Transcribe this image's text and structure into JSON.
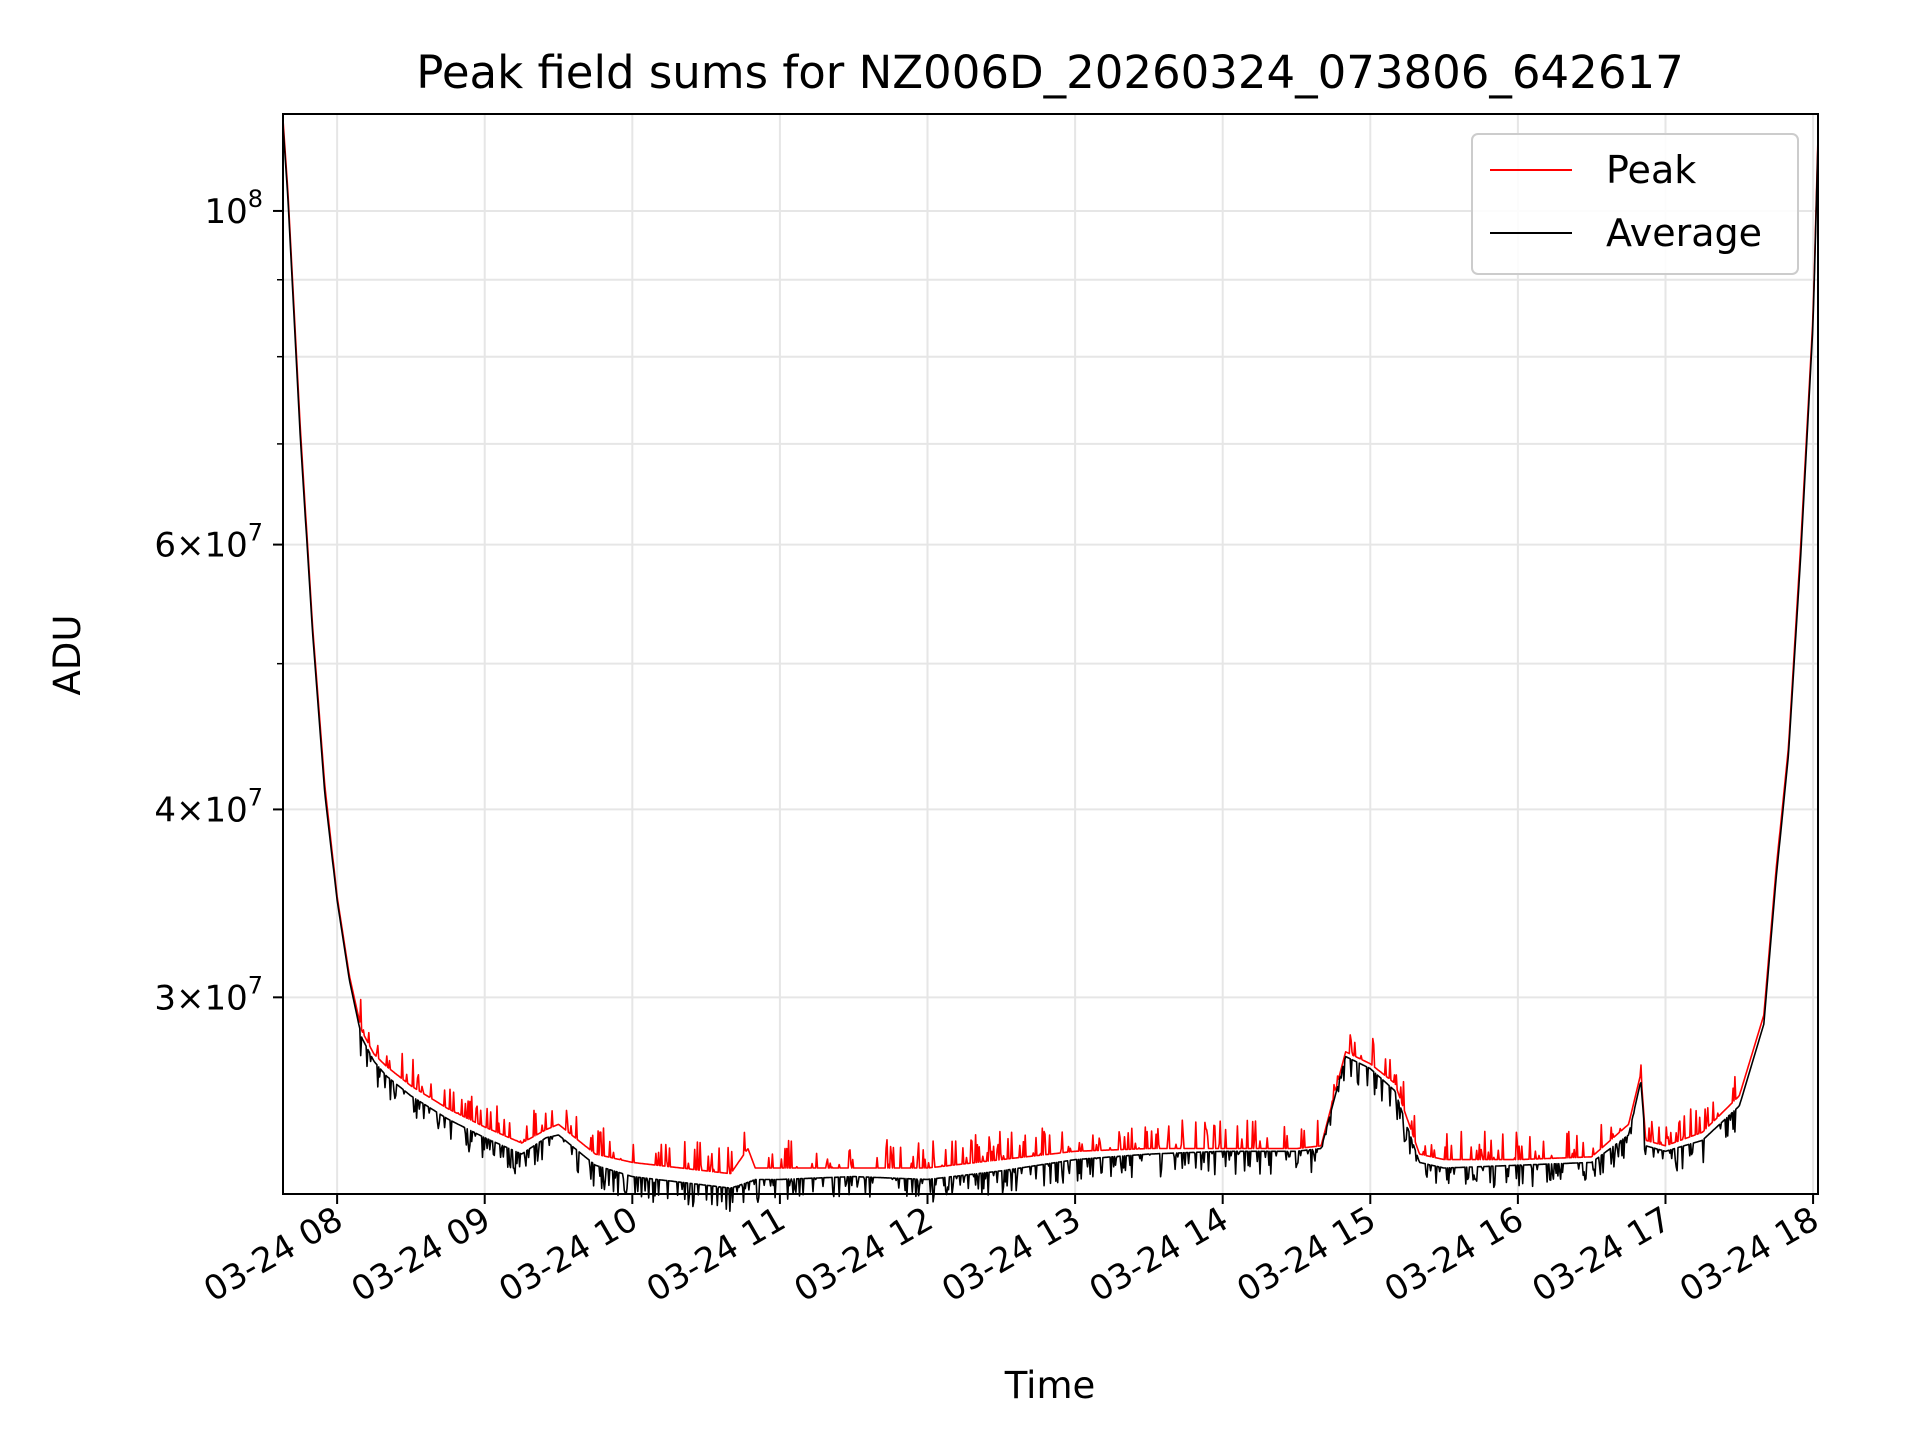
{
  "chart_data": {
    "type": "line",
    "title": "Peak field sums for NZ006D_20260324_073806_642617",
    "xlabel": "Time",
    "ylabel": "ADU",
    "x_axis": {
      "type": "time",
      "range": [
        "2026-03-24T07:38:00",
        "2026-03-24T18:02:00"
      ],
      "ticks": [
        "2026-03-24T08:00",
        "2026-03-24T09:00",
        "2026-03-24T10:00",
        "2026-03-24T11:00",
        "2026-03-24T12:00",
        "2026-03-24T13:00",
        "2026-03-24T14:00",
        "2026-03-24T15:00",
        "2026-03-24T16:00",
        "2026-03-24T17:00",
        "2026-03-24T18:00"
      ],
      "tick_labels": [
        "03-24 08",
        "03-24 09",
        "03-24 10",
        "03-24 11",
        "03-24 12",
        "03-24 13",
        "03-24 14",
        "03-24 15",
        "03-24 16",
        "03-24 17",
        "03-24 18"
      ]
    },
    "y_axis": {
      "scale": "log",
      "range": [
        22200000,
        116000000
      ],
      "ticks": [
        {
          "value": 100000000,
          "mantissa": "",
          "exponent": "8"
        },
        {
          "value": 60000000,
          "mantissa": "6",
          "exponent": "7"
        },
        {
          "value": 40000000,
          "mantissa": "4",
          "exponent": "7"
        },
        {
          "value": 30000000,
          "mantissa": "3",
          "exponent": "7"
        }
      ],
      "minor_ticks": [
        20000000,
        50000000,
        70000000,
        80000000,
        90000000
      ]
    },
    "grid": true,
    "legend": {
      "placement": "top-right"
    },
    "series": [
      {
        "name": "Peak",
        "color": "#ff0000",
        "x": [
          "2026-03-24T07:38",
          "2026-03-24T07:40",
          "2026-03-24T07:45",
          "2026-03-24T07:50",
          "2026-03-24T07:55",
          "2026-03-24T08:00",
          "2026-03-24T08:05",
          "2026-03-24T08:10",
          "2026-03-24T08:15",
          "2026-03-24T08:20",
          "2026-03-24T08:30",
          "2026-03-24T08:45",
          "2026-03-24T09:00",
          "2026-03-24T09:15",
          "2026-03-24T09:25",
          "2026-03-24T09:30",
          "2026-03-24T09:45",
          "2026-03-24T10:00",
          "2026-03-24T10:20",
          "2026-03-24T10:40",
          "2026-03-24T10:47",
          "2026-03-24T10:50",
          "2026-03-24T11:00",
          "2026-03-24T11:30",
          "2026-03-24T12:00",
          "2026-03-24T12:30",
          "2026-03-24T13:00",
          "2026-03-24T13:30",
          "2026-03-24T14:00",
          "2026-03-24T14:30",
          "2026-03-24T14:40",
          "2026-03-24T14:50",
          "2026-03-24T15:00",
          "2026-03-24T15:10",
          "2026-03-24T15:20",
          "2026-03-24T15:30",
          "2026-03-24T16:00",
          "2026-03-24T16:30",
          "2026-03-24T16:45",
          "2026-03-24T16:50",
          "2026-03-24T16:52",
          "2026-03-24T17:00",
          "2026-03-24T17:15",
          "2026-03-24T17:30",
          "2026-03-24T17:40",
          "2026-03-24T17:45",
          "2026-03-24T17:50",
          "2026-03-24T17:55",
          "2026-03-24T18:00",
          "2026-03-24T18:02"
        ],
        "values": [
          115000000,
          103000000,
          72000000,
          53000000,
          41500000,
          35000000,
          31000000,
          28500000,
          27500000,
          27000000,
          26200000,
          25300000,
          24600000,
          24000000,
          24500000,
          24700000,
          23600000,
          23300000,
          23100000,
          22900000,
          23800000,
          23100000,
          23100000,
          23100000,
          23100000,
          23400000,
          23700000,
          23800000,
          23800000,
          23800000,
          23900000,
          27600000,
          27100000,
          26300000,
          23600000,
          23400000,
          23400000,
          23500000,
          24700000,
          26700000,
          24100000,
          23900000,
          24400000,
          25800000,
          29200000,
          36500000,
          44000000,
          60000000,
          85000000,
          112000000
        ]
      },
      {
        "name": "Average",
        "color": "#000000",
        "x": [
          "2026-03-24T07:38",
          "2026-03-24T07:40",
          "2026-03-24T07:45",
          "2026-03-24T07:50",
          "2026-03-24T07:55",
          "2026-03-24T08:00",
          "2026-03-24T08:05",
          "2026-03-24T08:10",
          "2026-03-24T08:15",
          "2026-03-24T08:20",
          "2026-03-24T08:30",
          "2026-03-24T08:45",
          "2026-03-24T09:00",
          "2026-03-24T09:15",
          "2026-03-24T09:25",
          "2026-03-24T09:30",
          "2026-03-24T09:45",
          "2026-03-24T10:00",
          "2026-03-24T10:20",
          "2026-03-24T10:40",
          "2026-03-24T10:47",
          "2026-03-24T10:50",
          "2026-03-24T11:00",
          "2026-03-24T11:30",
          "2026-03-24T12:00",
          "2026-03-24T12:30",
          "2026-03-24T13:00",
          "2026-03-24T13:30",
          "2026-03-24T14:00",
          "2026-03-24T14:30",
          "2026-03-24T14:40",
          "2026-03-24T14:50",
          "2026-03-24T15:00",
          "2026-03-24T15:10",
          "2026-03-24T15:20",
          "2026-03-24T15:30",
          "2026-03-24T16:00",
          "2026-03-24T16:30",
          "2026-03-24T16:45",
          "2026-03-24T16:50",
          "2026-03-24T16:52",
          "2026-03-24T17:00",
          "2026-03-24T17:15",
          "2026-03-24T17:30",
          "2026-03-24T17:40",
          "2026-03-24T17:45",
          "2026-03-24T17:50",
          "2026-03-24T17:55",
          "2026-03-24T18:00",
          "2026-03-24T18:02"
        ],
        "values": [
          114000000,
          102000000,
          71000000,
          52500000,
          41000000,
          34800000,
          30800000,
          28200000,
          27200000,
          26600000,
          25800000,
          24900000,
          24200000,
          23600000,
          24200000,
          24300000,
          23200000,
          22800000,
          22600000,
          22400000,
          22600000,
          22700000,
          22700000,
          22800000,
          22700000,
          23000000,
          23400000,
          23600000,
          23700000,
          23700000,
          23800000,
          27400000,
          26900000,
          26000000,
          23300000,
          23100000,
          23200000,
          23300000,
          24300000,
          26400000,
          23900000,
          23700000,
          24100000,
          25400000,
          28800000,
          36000000,
          43500000,
          59000000,
          84000000,
          111000000
        ]
      }
    ]
  }
}
